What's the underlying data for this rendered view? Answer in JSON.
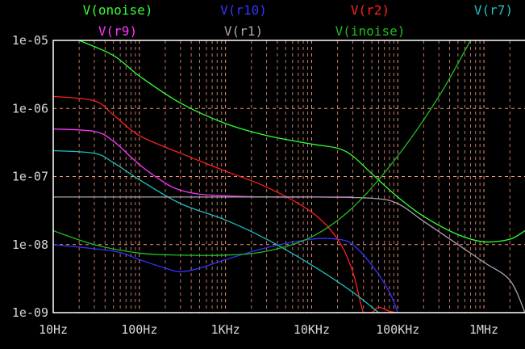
{
  "chart_data": {
    "type": "line",
    "title": "",
    "xlabel": "",
    "ylabel": "",
    "x_scale": "log",
    "y_scale": "log",
    "xlim": [
      10,
      3000000
    ],
    "ylim": [
      1e-09,
      1e-05
    ],
    "grid": true,
    "grid_color": "#ff9f80",
    "background": "#000000",
    "frame_color": "#ffffff",
    "x_tick_labels": [
      {
        "value": 10,
        "label": "10Hz"
      },
      {
        "value": 100,
        "label": "100Hz"
      },
      {
        "value": 1000,
        "label": "1KHz"
      },
      {
        "value": 10000,
        "label": "10KHz"
      },
      {
        "value": 100000,
        "label": "100KHz"
      },
      {
        "value": 1000000,
        "label": "1MHz"
      }
    ],
    "y_tick_labels": [
      {
        "value": 1e-05,
        "label": "1e-05"
      },
      {
        "value": 1e-06,
        "label": "1e-06"
      },
      {
        "value": 1e-07,
        "label": "1e-07"
      },
      {
        "value": 1e-08,
        "label": "1e-08"
      },
      {
        "value": 1e-09,
        "label": "1e-09"
      }
    ],
    "legend_placement": "top",
    "series": [
      {
        "name": "V(onoise)",
        "color": "#33ff33",
        "x": [
          20,
          50,
          100,
          300,
          1000,
          3000,
          10000,
          20000,
          30000,
          50000,
          100000,
          200000,
          500000,
          1000000,
          2000000,
          3000000
        ],
        "y": [
          1e-05,
          6e-06,
          3e-06,
          1.2e-06,
          6e-07,
          4e-07,
          3e-07,
          2.6e-07,
          2e-07,
          1.1e-07,
          5e-08,
          2.6e-08,
          1.4e-08,
          1.1e-08,
          1.2e-08,
          1.6e-08
        ]
      },
      {
        "name": "V(r10)",
        "color": "#3333ff",
        "x": [
          10,
          50,
          100,
          200,
          300,
          500,
          1000,
          3000,
          10000,
          20000,
          30000,
          50000,
          80000,
          100000
        ],
        "y": [
          1e-08,
          8e-09,
          6e-09,
          4.5e-09,
          4e-09,
          4.5e-09,
          6e-09,
          9e-09,
          1.2e-08,
          1.2e-08,
          1e-08,
          5e-09,
          2e-09,
          1e-09
        ]
      },
      {
        "name": "V(r2)",
        "color": "#ff2020",
        "x": [
          10,
          30,
          50,
          100,
          300,
          1000,
          3000,
          10000,
          20000,
          30000,
          40000,
          50000,
          60000,
          80000,
          100000
        ],
        "y": [
          1.5e-06,
          1.3e-06,
          8e-07,
          4e-07,
          2.2e-07,
          1.2e-07,
          7e-08,
          3e-08,
          1.2e-08,
          4e-09,
          1e-09,
          1e-09,
          1.2e-09,
          1.05e-09,
          1e-09
        ]
      },
      {
        "name": "V(r7)",
        "color": "#20c0c0",
        "x": [
          10,
          30,
          50,
          100,
          300,
          1000,
          3000,
          10000,
          30000,
          60000
        ],
        "y": [
          2.4e-07,
          2.2e-07,
          1.6e-07,
          9e-08,
          4e-08,
          2.3e-08,
          1.2e-08,
          5e-09,
          2e-09,
          1e-09
        ]
      },
      {
        "name": "V(r9)",
        "color": "#ff33ff",
        "x": [
          10,
          30,
          50,
          100,
          200,
          300,
          500,
          1000,
          3000,
          10000,
          30000
        ],
        "y": [
          5e-07,
          4.6e-07,
          3.3e-07,
          1.5e-07,
          8e-08,
          6.3e-08,
          5.5e-08,
          5.2e-08,
          5e-08,
          5e-08,
          5e-08
        ]
      },
      {
        "name": "V(r1)",
        "color": "#b0a0b0",
        "x": [
          10,
          100,
          1000,
          10000,
          50000,
          100000,
          200000,
          500000,
          1000000,
          2000000,
          3000000
        ],
        "y": [
          5e-08,
          5e-08,
          5e-08,
          5e-08,
          4.8e-08,
          4e-08,
          2.2e-08,
          1e-08,
          5.5e-09,
          3e-09,
          1e-09
        ]
      },
      {
        "name": "V(inoise)",
        "color": "#22bb22",
        "x": [
          10,
          30,
          100,
          300,
          1000,
          3000,
          10000,
          30000,
          100000,
          300000,
          700000
        ],
        "y": [
          1.6e-08,
          1e-08,
          7.5e-09,
          7e-09,
          7e-09,
          8e-09,
          1.3e-08,
          3.5e-08,
          2e-07,
          1.5e-06,
          1e-05
        ]
      }
    ]
  }
}
